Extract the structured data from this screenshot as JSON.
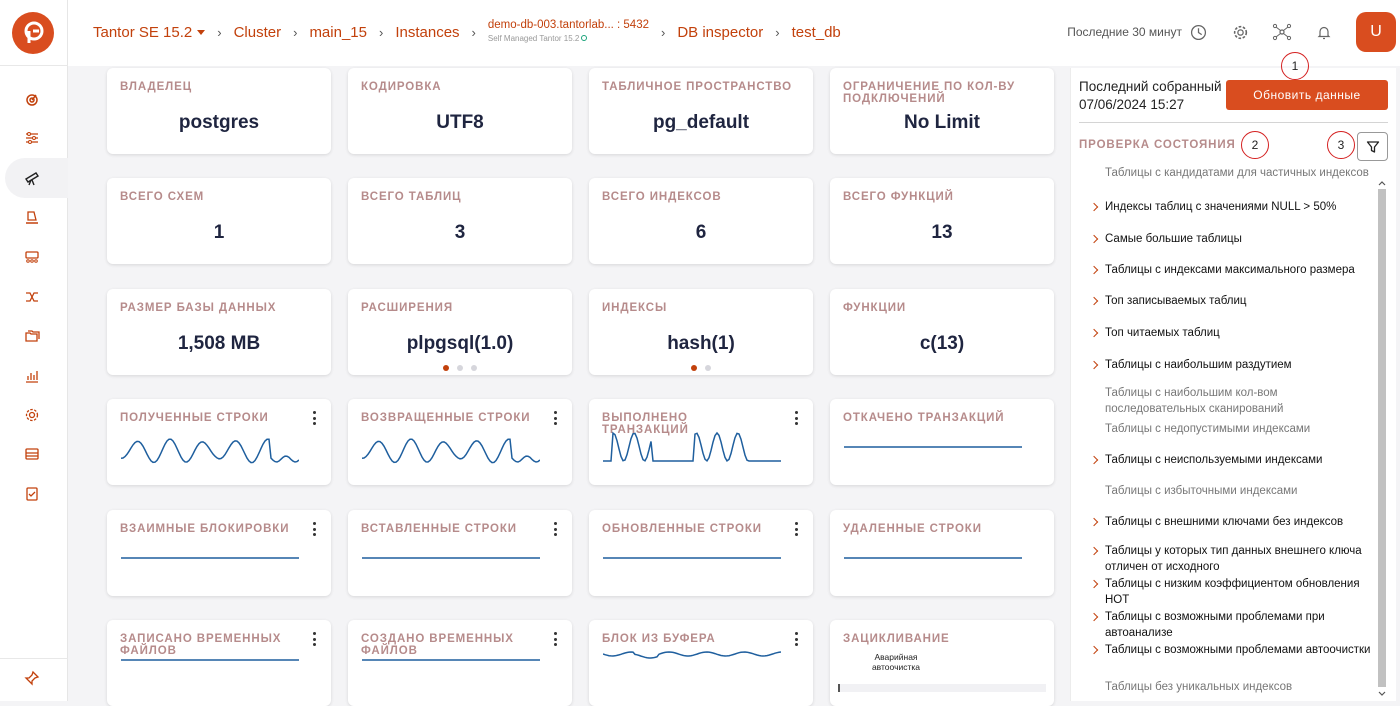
{
  "breadcrumb": {
    "product": "Tantor SE 15.2",
    "cluster": "Cluster",
    "main": "main_15",
    "instances": "Instances",
    "instance_name": "demo-db-003.tantorlab... : 5432",
    "instance_sub": "Self Managed Tantor 15.2",
    "inspector": "DB inspector",
    "db": "test_db"
  },
  "topbar": {
    "period": "Последние 30 минут",
    "avatar_letter": "U"
  },
  "stats": [
    {
      "label": "ВЛАДЕЛЕЦ",
      "value": "postgres"
    },
    {
      "label": "КОДИРОВКА",
      "value": "UTF8"
    },
    {
      "label": "ТАБЛИЧНОЕ ПРОСТРАНСТВО",
      "value": "pg_default"
    },
    {
      "label": "ОГРАНИЧЕНИЕ ПО КОЛ-ВУ ПОДКЛЮЧЕНИЙ",
      "value": "No Limit"
    },
    {
      "label": "ВСЕГО СХЕМ",
      "value": "1"
    },
    {
      "label": "ВСЕГО ТАБЛИЦ",
      "value": "3"
    },
    {
      "label": "ВСЕГО ИНДЕКСОВ",
      "value": "6"
    },
    {
      "label": "ВСЕГО ФУНКЦИЙ",
      "value": "13"
    },
    {
      "label": "РАЗМЕР БАЗЫ ДАННЫХ",
      "value": "1,508 MB"
    },
    {
      "label": "РАСШИРЕНИЯ",
      "value": "plpgsql(1.0)"
    },
    {
      "label": "ИНДЕКСЫ",
      "value": "hash(1)"
    },
    {
      "label": "ФУНКЦИИ",
      "value": "c(13)"
    }
  ],
  "metrics": [
    "ПОЛУЧЕННЫЕ СТРОКИ",
    "ВОЗВРАЩЕННЫЕ СТРОКИ",
    "ВЫПОЛНЕНО ТРАНЗАКЦИЙ",
    "ОТКАЧЕНО ТРАНЗАКЦИЙ",
    "ВЗАИМНЫЕ БЛОКИРОВКИ",
    "ВСТАВЛЕННЫЕ СТРОКИ",
    "ОБНОВЛЕННЫЕ СТРОКИ",
    "УДАЛЕННЫЕ СТРОКИ",
    "ЗАПИСАНО ВРЕМЕННЫХ ФАЙЛОВ",
    "СОЗДАНО ВРЕМЕННЫХ ФАЙЛОВ",
    "БЛОК ИЗ БУФЕРА",
    "ЗАЦИКЛИВАНИЕ"
  ],
  "wraparound_label": "Аварийная автоочистка",
  "panel": {
    "last_collected_label": "Последний собранный",
    "last_collected_time": "07/06/2024 15:27",
    "refresh_button": "Обновить данные",
    "health_title": "ПРОВЕРКА СОСТОЯНИЯ",
    "annotations": [
      "1",
      "2",
      "3"
    ],
    "checks": [
      {
        "label": "Таблицы с кандидатами для частичных индексов",
        "expandable": false
      },
      {
        "label": "Индексы таблиц с значениями NULL > 50%",
        "expandable": true
      },
      {
        "label": "Самые большие таблицы",
        "expandable": true
      },
      {
        "label": "Таблицы с индексами максимального размера",
        "expandable": true
      },
      {
        "label": "Топ записываемых таблиц",
        "expandable": true
      },
      {
        "label": "Топ читаемых таблиц",
        "expandable": true
      },
      {
        "label": "Таблицы с наибольшим раздутием",
        "expandable": true
      },
      {
        "label": "Таблицы с наибольшим кол-вом последовательных сканирований",
        "expandable": false
      },
      {
        "label": "Таблицы с недопустимыми индексами",
        "expandable": false
      },
      {
        "label": "Таблицы с неиспользуемыми индексами",
        "expandable": true
      },
      {
        "label": "Таблицы с избыточными индексами",
        "expandable": false
      },
      {
        "label": "Таблицы с внешними ключами без индексов",
        "expandable": true
      },
      {
        "label": "Таблицы у которых тип данных внешнего ключа отличен от исходного",
        "expandable": true
      },
      {
        "label": "Таблицы с низким коэффициентом обновления HOT",
        "expandable": true
      },
      {
        "label": "Таблицы с возможными проблемами при автоанализе",
        "expandable": true
      },
      {
        "label": "Таблицы с возможными проблемами автоочистки",
        "expandable": true
      },
      {
        "label": "Таблицы без уникальных индексов",
        "expandable": false
      }
    ]
  },
  "colors": {
    "accent": "#d94d1f",
    "spark": "#1f5f9e",
    "label": "#b68b8b"
  }
}
